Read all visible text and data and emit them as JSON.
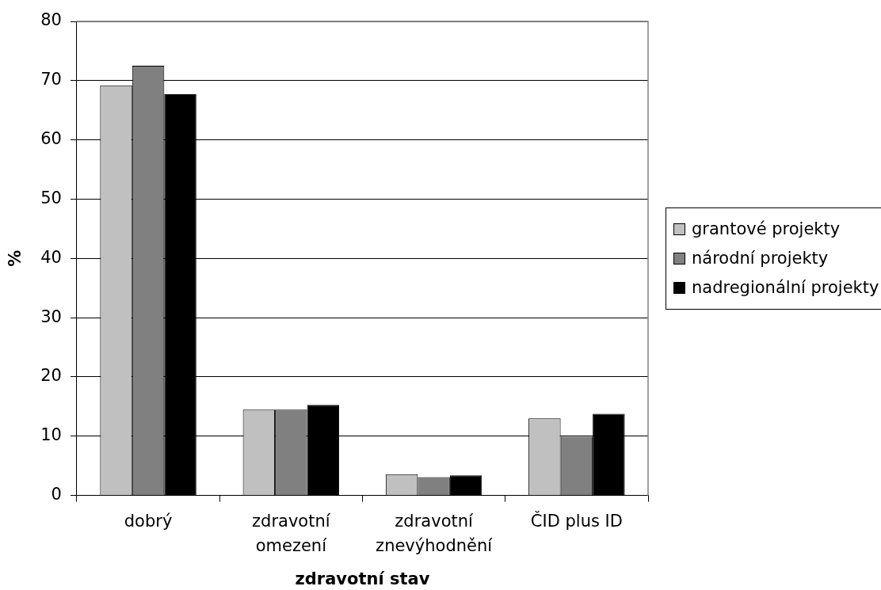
{
  "chart_data": {
    "type": "bar",
    "xlabel": "zdravotní stav",
    "ylabel": "%",
    "categories": [
      "dobrý",
      "zdravotní omezení",
      "zdravotní znevýhodnění",
      "ČID plus ID"
    ],
    "series": [
      {
        "name": "grantové projekty",
        "color": "#c0c0c0",
        "values": [
          69.2,
          14.5,
          3.6,
          13.0
        ]
      },
      {
        "name": "národní projekty",
        "color": "#808080",
        "values": [
          72.5,
          14.5,
          3.1,
          9.9
        ]
      },
      {
        "name": "nadregionální projekty",
        "color": "#000000",
        "values": [
          67.7,
          15.3,
          3.4,
          13.8
        ]
      }
    ],
    "ylim": [
      0,
      80
    ],
    "yticks": [
      0,
      10,
      20,
      30,
      40,
      50,
      60,
      70,
      80
    ],
    "grid": "y",
    "legend": "right"
  }
}
